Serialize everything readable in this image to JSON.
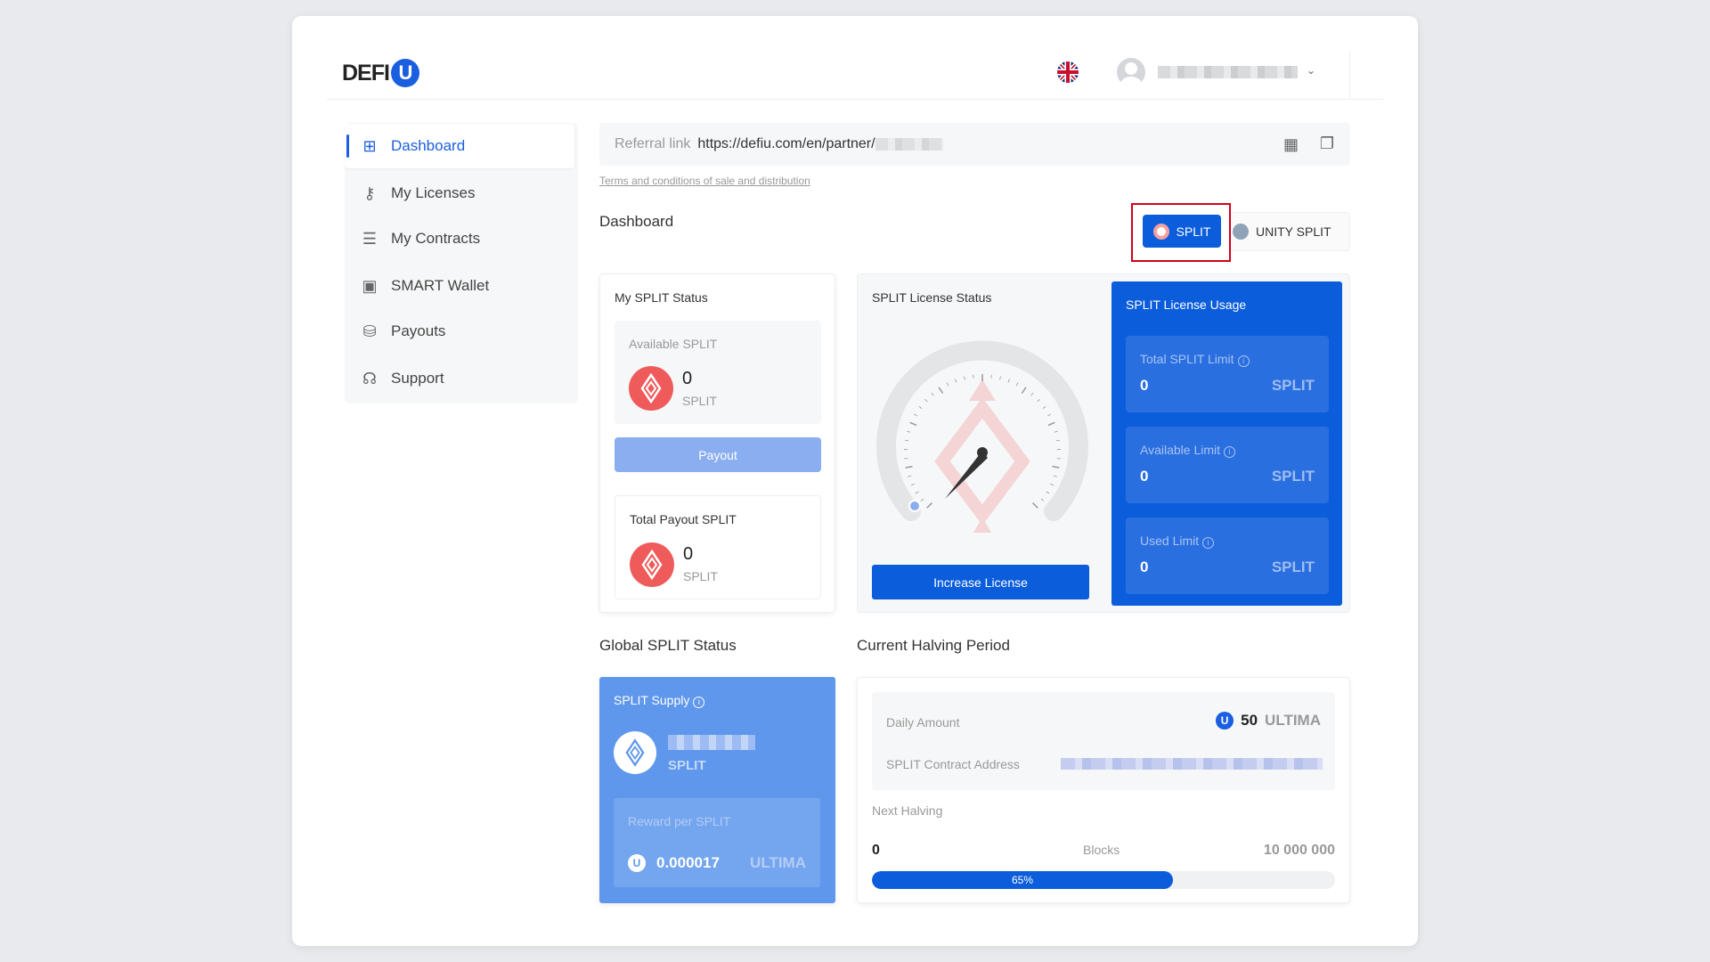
{
  "header": {
    "logo": "DEFI",
    "logo_badge": "U",
    "language": "English (UK)"
  },
  "sidebar": {
    "items": [
      {
        "label": "Dashboard",
        "icon": "grid-icon",
        "active": true
      },
      {
        "label": "My Licenses",
        "icon": "key-icon"
      },
      {
        "label": "My Contracts",
        "icon": "list-icon"
      },
      {
        "label": "SMART Wallet",
        "icon": "wallet-icon"
      },
      {
        "label": "Payouts",
        "icon": "payout-icon"
      },
      {
        "label": "Support",
        "icon": "headset-icon"
      }
    ]
  },
  "referral": {
    "label": "Referral link",
    "url": "https://defiu.com/en/partner/"
  },
  "terms": "Terms and conditions of sale and distribution",
  "dashboard": {
    "title": "Dashboard",
    "toggle": {
      "split": "SPLIT",
      "unity": "UNITY SPLIT",
      "active": "SPLIT"
    }
  },
  "my_status": {
    "title": "My SPLIT Status",
    "available_label": "Available SPLIT",
    "available_value": "0",
    "unit": "SPLIT",
    "payout": "Payout",
    "total_label": "Total Payout SPLIT",
    "total_value": "0"
  },
  "license_status": {
    "title": "SPLIT License Status",
    "button": "Increase License",
    "gauge_level": 0
  },
  "license_usage": {
    "title": "SPLIT License Usage",
    "items": [
      {
        "label": "Total SPLIT Limit",
        "value": "0",
        "unit": "SPLIT"
      },
      {
        "label": "Available Limit",
        "value": "0",
        "unit": "SPLIT"
      },
      {
        "label": "Used Limit",
        "value": "0",
        "unit": "SPLIT"
      }
    ]
  },
  "global": {
    "title": "Global SPLIT Status",
    "supply_label": "SPLIT Supply",
    "supply_unit": "SPLIT",
    "reward_label": "Reward per SPLIT",
    "reward_value": "0.000017",
    "reward_unit": "ULTIMA"
  },
  "halving": {
    "title": "Current Halving Period",
    "daily_label": "Daily Amount",
    "daily_value": "50",
    "daily_unit": "ULTIMA",
    "contract_label": "SPLIT Contract Address",
    "next_label": "Next Halving",
    "min": "0",
    "blocks_label": "Blocks",
    "max": "10 000 000",
    "progress_label": "65%",
    "progress": 65
  },
  "colors": {
    "primary": "#0b5ddc",
    "light_blue": "#5f97ec",
    "split_red": "#ef5b5b",
    "highlight": "#d0021b"
  }
}
